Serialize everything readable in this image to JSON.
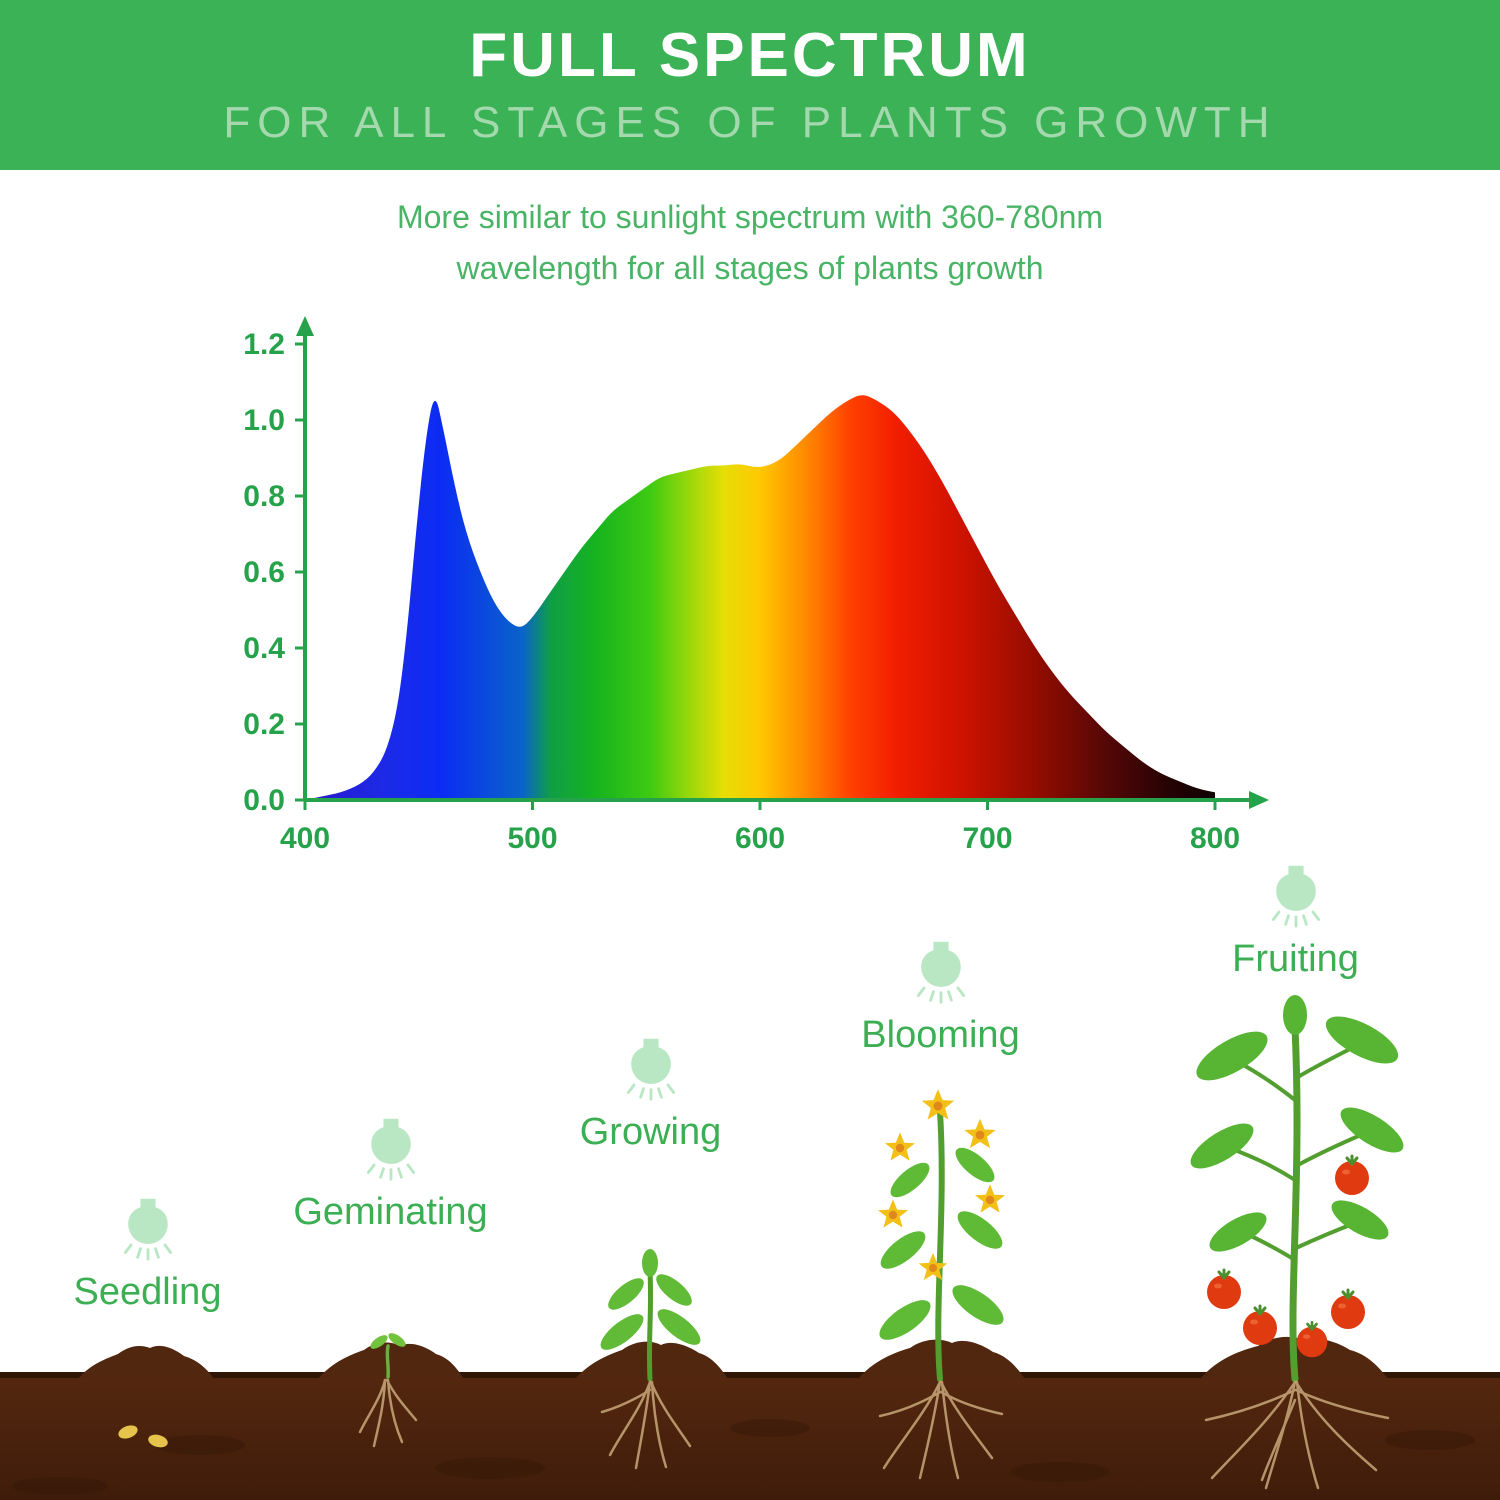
{
  "header": {
    "title": "FULL SPECTRUM",
    "subtitle": "FOR ALL STAGES OF PLANTS GROWTH"
  },
  "intro": {
    "line1": "More similar to sunlight spectrum with 360-780nm",
    "line2": "wavelength for all stages of plants growth"
  },
  "chart_data": {
    "type": "area",
    "title": "",
    "xlabel": "",
    "ylabel": "",
    "xlim": [
      400,
      800
    ],
    "ylim": [
      0,
      1.2
    ],
    "grid": false,
    "legend": false,
    "x_ticks": [
      "400",
      "500",
      "600",
      "700",
      "800"
    ],
    "y_ticks": [
      "0.0",
      "0.2",
      "0.4",
      "0.6",
      "0.8",
      "1.0",
      "1.2"
    ],
    "x": [
      400,
      408,
      416,
      424,
      430,
      436,
      441,
      445,
      449,
      453,
      457,
      461,
      466,
      471,
      477,
      483,
      489,
      495,
      500,
      507,
      514,
      521,
      528,
      535,
      542,
      549,
      556,
      563,
      570,
      577,
      584,
      591,
      598,
      604,
      610,
      617,
      624,
      631,
      638,
      645,
      652,
      659,
      666,
      673,
      680,
      688,
      696,
      704,
      712,
      720,
      728,
      736,
      744,
      752,
      760,
      768,
      776,
      784,
      792,
      800
    ],
    "y": [
      0.0,
      0.01,
      0.02,
      0.04,
      0.07,
      0.13,
      0.25,
      0.45,
      0.72,
      0.95,
      1.08,
      0.97,
      0.82,
      0.7,
      0.6,
      0.52,
      0.47,
      0.45,
      0.48,
      0.54,
      0.6,
      0.66,
      0.71,
      0.76,
      0.79,
      0.82,
      0.85,
      0.86,
      0.87,
      0.88,
      0.88,
      0.885,
      0.875,
      0.88,
      0.9,
      0.94,
      0.98,
      1.02,
      1.05,
      1.07,
      1.05,
      1.02,
      0.97,
      0.91,
      0.84,
      0.75,
      0.66,
      0.57,
      0.49,
      0.41,
      0.34,
      0.28,
      0.23,
      0.18,
      0.14,
      0.1,
      0.07,
      0.05,
      0.03,
      0.02
    ],
    "gradient_stops": [
      {
        "offset": "0%",
        "color": "#2a18c8"
      },
      {
        "offset": "9%",
        "color": "#1c2ae8"
      },
      {
        "offset": "15%",
        "color": "#0b2cf4"
      },
      {
        "offset": "24%",
        "color": "#0a64c8"
      },
      {
        "offset": "27%",
        "color": "#0f9e46"
      },
      {
        "offset": "32%",
        "color": "#16b41e"
      },
      {
        "offset": "38%",
        "color": "#3fca12"
      },
      {
        "offset": "42%",
        "color": "#95d70b"
      },
      {
        "offset": "46%",
        "color": "#e6de06"
      },
      {
        "offset": "50%",
        "color": "#ffc800"
      },
      {
        "offset": "55%",
        "color": "#ff8a00"
      },
      {
        "offset": "60%",
        "color": "#ff4000"
      },
      {
        "offset": "65%",
        "color": "#f21e00"
      },
      {
        "offset": "72%",
        "color": "#cf1200"
      },
      {
        "offset": "80%",
        "color": "#960d00"
      },
      {
        "offset": "88%",
        "color": "#550707"
      },
      {
        "offset": "95%",
        "color": "#250303"
      },
      {
        "offset": "100%",
        "color": "#100101"
      }
    ],
    "axis_color": "#26a24b"
  },
  "stages": [
    {
      "label": "Seedling"
    },
    {
      "label": "Geminating"
    },
    {
      "label": "Growing"
    },
    {
      "label": "Blooming"
    },
    {
      "label": "Fruiting"
    }
  ],
  "colors": {
    "header_bg": "#3cb257",
    "header_subtitle": "#a3d9ad",
    "intro_text": "#4ab466",
    "axis_green": "#26a24b",
    "stage_label_green": "#3cae53",
    "bulb_green": "#b9e7c4",
    "soil_brown": "#4e2410",
    "mound_brown": "#512710",
    "roots_tan": "#c9a87a",
    "stem_green": "#4f9e2e",
    "leaf_green": "#61bb37",
    "flower_yellow": "#f3c018",
    "tomato_red": "#df3a10",
    "seed_yellow": "#e6c44c"
  }
}
